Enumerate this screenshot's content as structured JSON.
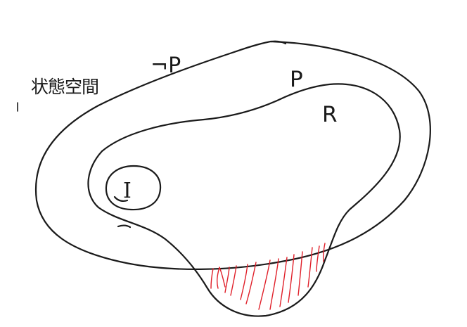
{
  "diagram": {
    "labels": {
      "state_space": "状態空間",
      "not_p": "¬P",
      "p": "P",
      "r": "R",
      "i": "I"
    },
    "colors": {
      "ink": "#1a1a1a",
      "hatch": "#e0202a",
      "background": "#ffffff"
    },
    "regions": [
      "outer-region-not-p",
      "region-p",
      "region-r",
      "region-i",
      "hatched-region"
    ]
  }
}
